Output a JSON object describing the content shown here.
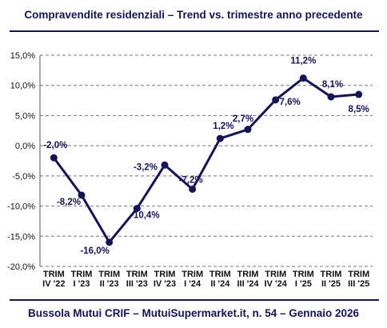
{
  "title": "Compravendite residenziali – Trend vs. trimestre anno precedente",
  "footer": "Bussola Mutui CRIF – MutuiSupermarket.it, n. 54 – Gennaio 2026",
  "colors": {
    "line": "#14145a",
    "text": "#14145a",
    "grid": "#777777"
  },
  "chart_data": {
    "type": "line",
    "title": "Compravendite residenziali – Trend vs. trimestre anno precedente",
    "xlabel": "",
    "ylabel": "",
    "ylim": [
      -20,
      15
    ],
    "yticks": [
      "15,0%",
      "10,0%",
      "5,0%",
      "0,0%",
      "-5,0%",
      "-10,0%",
      "-15,0%",
      "-20,0%"
    ],
    "grid": "horizontal dashed",
    "legend": "none",
    "categories": [
      [
        "TRIM",
        "IV '22"
      ],
      [
        "TRIM",
        "I '23"
      ],
      [
        "TRIM",
        "II '23"
      ],
      [
        "TRIM",
        "III '23"
      ],
      [
        "TRIM",
        "IV '23"
      ],
      [
        "TRIM",
        "I '24"
      ],
      [
        "TRIM",
        "II '24"
      ],
      [
        "TRIM",
        "III '24"
      ],
      [
        "TRIM",
        "IV '24"
      ],
      [
        "TRIM",
        "I '25"
      ],
      [
        "TRIM",
        "II '25"
      ],
      [
        "TRIM",
        "III '25"
      ]
    ],
    "values": [
      -2.0,
      -8.2,
      -16.0,
      -10.4,
      -3.2,
      -7.2,
      1.2,
      2.7,
      7.6,
      11.2,
      8.1,
      8.5
    ],
    "labels": [
      "-2,0%",
      "-8,2%",
      "-16,0%",
      "-10,4%",
      "-3,2%",
      "-7,2%",
      "1,2%",
      "2,7%",
      "7,6%",
      "11,2%",
      "8,1%",
      "8,5%"
    ]
  }
}
